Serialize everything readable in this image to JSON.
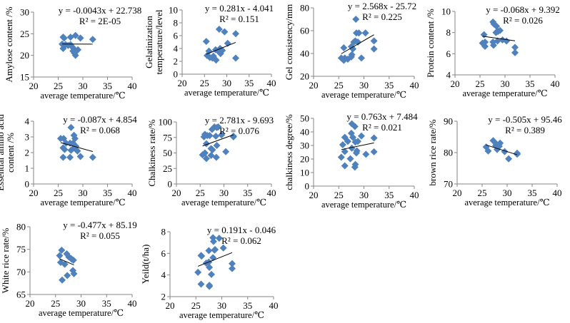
{
  "chart_data": [
    {
      "type": "scatter",
      "ylabel": [
        "Amylose content /%"
      ],
      "xlabel": "average temperature/℃",
      "xlim": [
        20,
        40
      ],
      "xticks": [
        20,
        25,
        30,
        35,
        40
      ],
      "ylim": [
        15,
        30
      ],
      "yticks": [
        15,
        20,
        25,
        30
      ],
      "equation": "y = -0.0043x + 22.738",
      "r2": "R² = 2E-05",
      "trend": {
        "slope": -0.0043,
        "intercept": 22.738
      },
      "points": [
        [
          26,
          24.2
        ],
        [
          26.2,
          24
        ],
        [
          27.5,
          24.2
        ],
        [
          28.5,
          24.6
        ],
        [
          29.5,
          24
        ],
        [
          32,
          23.7
        ],
        [
          25.8,
          22.6
        ],
        [
          26.5,
          22.5
        ],
        [
          27,
          22.3
        ],
        [
          27.8,
          22
        ],
        [
          28.2,
          21.5
        ],
        [
          26,
          21.6
        ],
        [
          28,
          21
        ],
        [
          28.3,
          20.5
        ],
        [
          28.5,
          20
        ],
        [
          29,
          21.3
        ],
        [
          27.5,
          22.5
        ]
      ]
    },
    {
      "type": "scatter",
      "ylabel": [
        "Gelatinization",
        "temperature/level"
      ],
      "xlabel": "average temperature/℃",
      "xlim": [
        20,
        40
      ],
      "xticks": [
        20,
        25,
        30,
        35,
        40
      ],
      "ylim": [
        0,
        10
      ],
      "yticks": [
        0,
        2,
        4,
        6,
        8,
        10
      ],
      "equation": "y = 0.281x - 4.041",
      "r2": "R² = 0.151",
      "trend": {
        "slope": 0.281,
        "intercept": -4.041
      },
      "points": [
        [
          25.4,
          5.1
        ],
        [
          28.3,
          7
        ],
        [
          29.5,
          6.6
        ],
        [
          32,
          6.3
        ],
        [
          30.2,
          4.8
        ],
        [
          26,
          3.6
        ],
        [
          25.6,
          2.9
        ],
        [
          26.2,
          2.6
        ],
        [
          26.8,
          2.5
        ],
        [
          27.6,
          2.2
        ],
        [
          27.5,
          3.8
        ],
        [
          28.2,
          3.5
        ],
        [
          28.5,
          4
        ],
        [
          28.6,
          3.2
        ],
        [
          29,
          3.7
        ],
        [
          32,
          2.5
        ],
        [
          27,
          2.8
        ]
      ]
    },
    {
      "type": "scatter",
      "ylabel": [
        "Gel consistency/mm"
      ],
      "xlabel": "average temperature/℃",
      "xlim": [
        20,
        40
      ],
      "xticks": [
        20,
        25,
        30,
        35,
        40
      ],
      "ylim": [
        20,
        80
      ],
      "yticks": [
        20,
        40,
        60,
        80
      ],
      "equation": "y = 2.568x - 25.72",
      "r2": "R² = 0.225",
      "trend": {
        "slope": 2.568,
        "intercept": -25.72
      },
      "points": [
        [
          28.4,
          70
        ],
        [
          28.5,
          58
        ],
        [
          29,
          58
        ],
        [
          30.3,
          58
        ],
        [
          32,
          51
        ],
        [
          32,
          44
        ],
        [
          26,
          45
        ],
        [
          25.5,
          36
        ],
        [
          26,
          34
        ],
        [
          26.2,
          36
        ],
        [
          26.8,
          35
        ],
        [
          27.5,
          37
        ],
        [
          27.6,
          39
        ],
        [
          27.5,
          46
        ],
        [
          28,
          50
        ],
        [
          28.3,
          51
        ],
        [
          28.8,
          50
        ],
        [
          29.5,
          36
        ],
        [
          27.8,
          44
        ]
      ]
    },
    {
      "type": "scatter",
      "ylabel": [
        "Protein content /%"
      ],
      "xlabel": "average temperature/℃",
      "xlim": [
        20,
        40
      ],
      "xticks": [
        20,
        25,
        30,
        35,
        40
      ],
      "ylim": [
        4,
        10
      ],
      "yticks": [
        4,
        6,
        8,
        10
      ],
      "equation": "y = -0.068x + 9.392",
      "r2": "R² = 0.026",
      "trend": {
        "slope": -0.068,
        "intercept": 9.392
      },
      "points": [
        [
          27.6,
          9
        ],
        [
          27.8,
          8.8
        ],
        [
          28.3,
          8.6
        ],
        [
          28.6,
          8.1
        ],
        [
          29,
          8.2
        ],
        [
          25.8,
          7.8
        ],
        [
          25.5,
          7
        ],
        [
          26,
          6.7
        ],
        [
          26,
          7.1
        ],
        [
          27.6,
          7.1
        ],
        [
          27.7,
          6.8
        ],
        [
          28.5,
          7.2
        ],
        [
          29.5,
          7.3
        ],
        [
          30.3,
          7.2
        ],
        [
          32,
          6.6
        ],
        [
          32,
          6.1
        ],
        [
          28.2,
          8
        ]
      ]
    },
    {
      "type": "scatter",
      "ylabel": [
        "Essential amino acid",
        "content /%"
      ],
      "xlabel": "average temperature/℃",
      "xlim": [
        20,
        40
      ],
      "xticks": [
        20,
        25,
        30,
        35,
        40
      ],
      "ylim": [
        0,
        4
      ],
      "yticks": [
        0,
        1,
        2,
        3,
        4
      ],
      "equation": "y = -0.087x + 4.854",
      "r2": "R² = 0.068",
      "trend": {
        "slope": -0.087,
        "intercept": 4.854
      },
      "points": [
        [
          27.6,
          3.6
        ],
        [
          25.5,
          2.9
        ],
        [
          26.1,
          2.9
        ],
        [
          28.2,
          3.1
        ],
        [
          28.4,
          2.9
        ],
        [
          27.4,
          2.6
        ],
        [
          26,
          2.3
        ],
        [
          26.3,
          2.2
        ],
        [
          27.6,
          2.15
        ],
        [
          28,
          2.6
        ],
        [
          28.6,
          2.4
        ],
        [
          28.9,
          2.1
        ],
        [
          29.5,
          1.75
        ],
        [
          26,
          1.7
        ],
        [
          27.4,
          1.7
        ],
        [
          32,
          1.7
        ],
        [
          26.6,
          2.6
        ],
        [
          28.2,
          2.3
        ]
      ]
    },
    {
      "type": "scatter",
      "ylabel": [
        "Chalkiness rate/%"
      ],
      "xlabel": "average temperature/℃",
      "xlim": [
        20,
        40
      ],
      "xticks": [
        20,
        25,
        30,
        35,
        40
      ],
      "ylim": [
        0,
        100
      ],
      "yticks": [
        0,
        25,
        50,
        75,
        100
      ],
      "equation": "y = 2.781x - 9.693",
      "r2": "R² = 0.076",
      "trend": {
        "slope": 2.781,
        "intercept": -9.693
      },
      "points": [
        [
          26,
          80
        ],
        [
          25.8,
          76
        ],
        [
          26.5,
          78
        ],
        [
          27.5,
          88
        ],
        [
          28,
          92
        ],
        [
          28.5,
          91
        ],
        [
          28.8,
          92
        ],
        [
          27,
          78
        ],
        [
          28.3,
          77
        ],
        [
          29.5,
          79
        ],
        [
          32,
          76
        ],
        [
          32,
          77
        ],
        [
          26.3,
          65
        ],
        [
          28.5,
          62
        ],
        [
          27.3,
          57
        ],
        [
          27.6,
          55
        ],
        [
          25.5,
          47
        ],
        [
          26,
          50
        ],
        [
          26.3,
          41
        ],
        [
          27.3,
          46
        ],
        [
          28.4,
          43
        ],
        [
          30.4,
          52
        ]
      ]
    },
    {
      "type": "scatter",
      "ylabel": [
        "chalkiness degree/%"
      ],
      "xlabel": "average temperature/℃",
      "xlim": [
        20,
        40
      ],
      "xticks": [
        20,
        25,
        30,
        35,
        40
      ],
      "ylim": [
        0,
        50
      ],
      "yticks": [
        0,
        10,
        20,
        30,
        40,
        50
      ],
      "equation": "y = 0.763x + 7.484",
      "r2": "R² = 0.021",
      "trend": {
        "slope": 0.763,
        "intercept": 7.484
      },
      "points": [
        [
          27.6,
          46
        ],
        [
          28.2,
          44
        ],
        [
          27.5,
          39
        ],
        [
          27.8,
          36
        ],
        [
          29.5,
          37
        ],
        [
          26.2,
          36
        ],
        [
          26.8,
          33
        ],
        [
          28.3,
          32.5
        ],
        [
          28.8,
          33
        ],
        [
          32,
          35.5
        ],
        [
          25.8,
          30.5
        ],
        [
          26.2,
          25.5
        ],
        [
          27.6,
          28
        ],
        [
          28.6,
          26
        ],
        [
          28.5,
          24.5
        ],
        [
          30.4,
          23.5
        ],
        [
          32,
          25.3
        ],
        [
          25.5,
          21.3
        ],
        [
          27.3,
          20.2
        ],
        [
          26.2,
          15
        ],
        [
          28.3,
          16
        ],
        [
          28.2,
          14
        ]
      ]
    },
    {
      "type": "scatter",
      "ylabel": [
        "brown rice rate/%"
      ],
      "xlabel": "average temperature/℃",
      "xlim": [
        20,
        40
      ],
      "xticks": [
        20,
        25,
        30,
        35,
        40
      ],
      "ylim": [
        70,
        90
      ],
      "yticks": [
        70,
        80,
        90
      ],
      "equation": "y = -0.505x + 95.46",
      "r2": "R² = 0.389",
      "trend": {
        "slope": -0.505,
        "intercept": 95.46
      },
      "points": [
        [
          27.2,
          83.8
        ],
        [
          28.6,
          83
        ],
        [
          25.8,
          81.8
        ],
        [
          26.2,
          80.5
        ],
        [
          27.7,
          82.2
        ],
        [
          28,
          81
        ],
        [
          28.4,
          82
        ],
        [
          29.5,
          80.3
        ],
        [
          30.3,
          78
        ],
        [
          32,
          79.5
        ],
        [
          32,
          79.8
        ],
        [
          27.8,
          82.8
        ]
      ]
    },
    {
      "type": "scatter",
      "ylabel": [
        "White rice rate/%"
      ],
      "xlabel": "average temperature/℃",
      "xlim": [
        20,
        40
      ],
      "xticks": [
        20,
        25,
        30,
        35,
        40
      ],
      "ylim": [
        65,
        80
      ],
      "yticks": [
        65,
        70,
        75,
        80
      ],
      "equation": "y = -0.477x + 85.19",
      "r2": "R² = 0.055",
      "trend": {
        "slope": -0.477,
        "intercept": 85.19
      },
      "points": [
        [
          26.2,
          74.8
        ],
        [
          25.8,
          73.6
        ],
        [
          27.2,
          74
        ],
        [
          27.6,
          73.3
        ],
        [
          28,
          73
        ],
        [
          28.5,
          72.6
        ],
        [
          26,
          72.1
        ],
        [
          26.8,
          71.7
        ],
        [
          28.4,
          70.3
        ],
        [
          28.6,
          69.6
        ],
        [
          27.3,
          69.2
        ],
        [
          26.3,
          68.2
        ],
        [
          28.2,
          72.8
        ]
      ]
    },
    {
      "type": "scatter",
      "ylabel": [
        "Yeild(t/ha)"
      ],
      "xlabel": "average temperature/℃",
      "xlim": [
        20,
        40
      ],
      "xticks": [
        20,
        25,
        30,
        35,
        40
      ],
      "ylim": [
        2,
        8
      ],
      "yticks": [
        2,
        4,
        6,
        8
      ],
      "equation": "y = 0.191x - 0.046",
      "r2": "R² = 0.062",
      "trend": {
        "slope": 0.191,
        "intercept": -0.046
      },
      "points": [
        [
          28.3,
          7.45
        ],
        [
          29.5,
          7.4
        ],
        [
          28.4,
          7.1
        ],
        [
          28.6,
          6.3
        ],
        [
          28.7,
          6.35
        ],
        [
          30.3,
          6.5
        ],
        [
          27.5,
          6.25
        ],
        [
          26,
          5.8
        ],
        [
          26.1,
          5.75
        ],
        [
          28.3,
          5.6
        ],
        [
          27,
          5.1
        ],
        [
          27.5,
          5.2
        ],
        [
          27.6,
          4.7
        ],
        [
          32,
          5.05
        ],
        [
          32,
          4.6
        ],
        [
          25.4,
          4.25
        ],
        [
          28,
          4.05
        ],
        [
          26,
          3.15
        ],
        [
          27.6,
          3.05
        ],
        [
          27.6,
          2.95
        ]
      ]
    }
  ],
  "colors": {
    "marker": "#4f81bd",
    "trendline": "#000000",
    "axis": "#868686"
  }
}
